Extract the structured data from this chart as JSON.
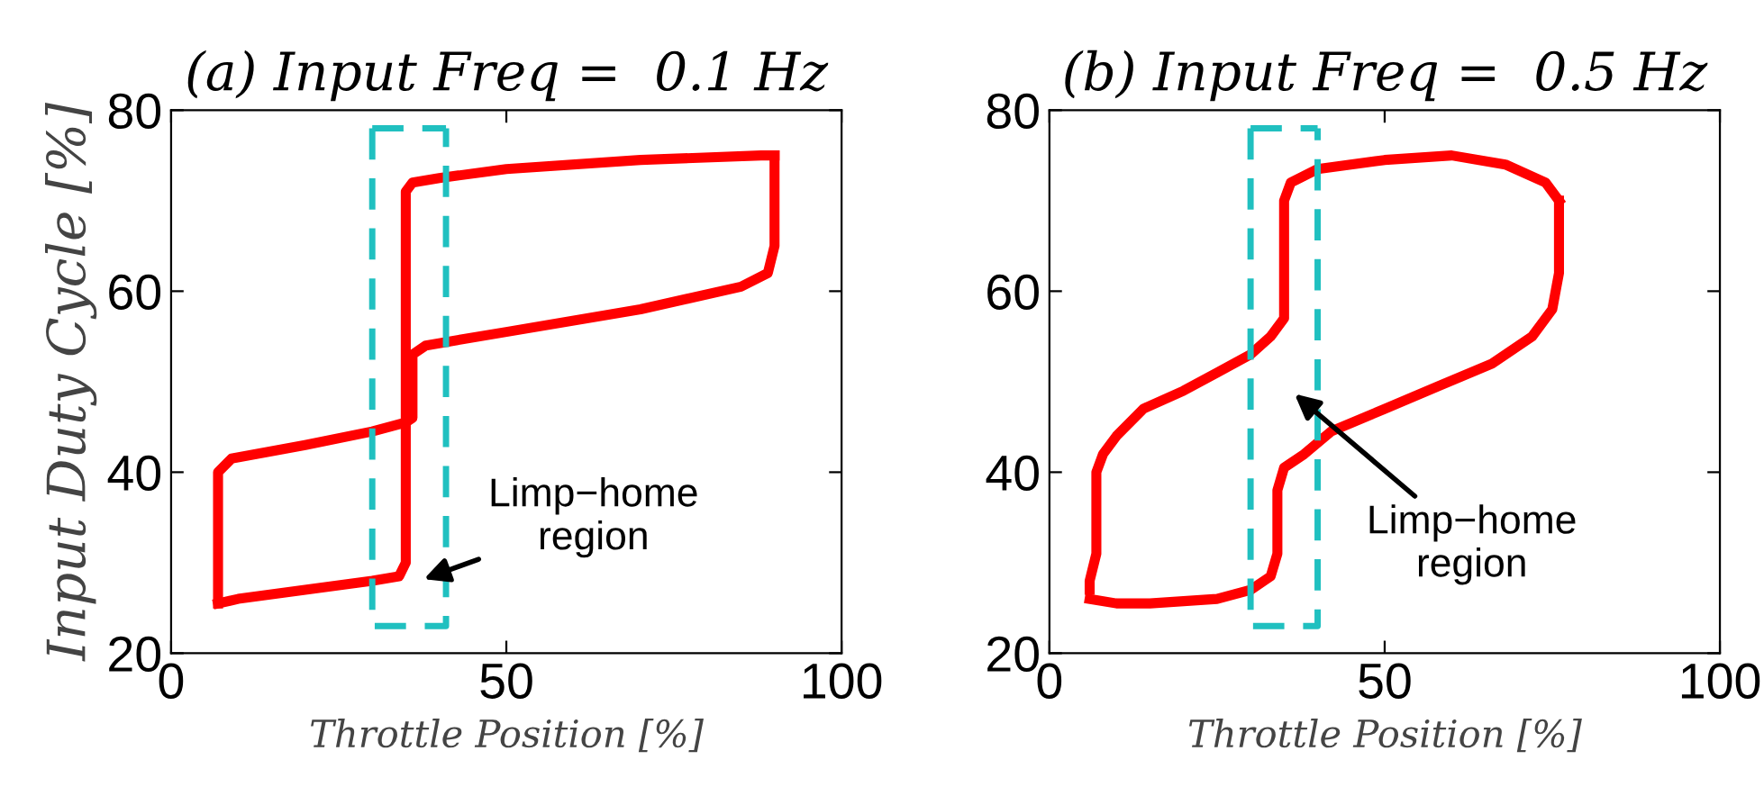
{
  "chart_data": [
    {
      "type": "line",
      "title": "(a) Input Freq =  0.1 Hz",
      "xlabel": "Throttle Position [%]",
      "ylabel": "Input Duty Cycle [%]",
      "xlim": [
        0,
        100
      ],
      "ylim": [
        20,
        80
      ],
      "xticks": [
        0,
        50,
        100
      ],
      "yticks": [
        20,
        40,
        60,
        80
      ],
      "grid": false,
      "legend": false,
      "marker": "none",
      "series": [
        {
          "color": "#ff0000",
          "line_style": "solid",
          "x": [
            7,
            7,
            9,
            20,
            30,
            35,
            36,
            36,
            38,
            50,
            70,
            85,
            89,
            90,
            90
          ],
          "values": [
            25.5,
            40,
            41.5,
            43,
            44.5,
            45.5,
            46,
            53,
            54,
            55.5,
            58,
            60.5,
            62,
            65,
            75
          ]
        },
        {
          "color": "#ff0000",
          "line_style": "solid",
          "x": [
            7,
            10,
            20,
            30,
            34,
            35,
            35,
            36,
            40,
            50,
            70,
            88,
            90
          ],
          "values": [
            25.5,
            26,
            27,
            28,
            28.5,
            30,
            71,
            72,
            72.5,
            73.5,
            74.5,
            75,
            75
          ]
        },
        {
          "color": "#20c0c0",
          "line_style": "dashed",
          "x": [
            30,
            30,
            41,
            41
          ],
          "values": [
            78,
            23,
            23,
            78
          ]
        },
        {
          "color": "#20c0c0",
          "line_style": "dashed",
          "x": [
            30,
            41
          ],
          "values": [
            78,
            78
          ]
        }
      ],
      "annotations": [
        "Limp−home\nregion"
      ]
    },
    {
      "type": "line",
      "title": "(b) Input Freq =  0.5 Hz",
      "xlabel": "Throttle Position [%]",
      "xlim": [
        0,
        100
      ],
      "ylim": [
        20,
        80
      ],
      "xticks": [
        0,
        50,
        100
      ],
      "yticks": [
        20,
        40,
        60,
        80
      ],
      "grid": false,
      "legend": false,
      "marker": "none",
      "series": [
        {
          "color": "#ff0000",
          "line_style": "solid",
          "x": [
            6,
            6,
            7,
            7,
            7,
            8,
            10,
            14,
            20,
            25,
            30,
            33,
            35,
            35,
            35,
            35,
            36,
            40,
            50,
            60,
            68,
            74,
            76
          ],
          "values": [
            27,
            28,
            31,
            35,
            40,
            42,
            44,
            47,
            49,
            51,
            53,
            55,
            57,
            60,
            65,
            70,
            72,
            73.5,
            74.5,
            75,
            74,
            72,
            70
          ]
        },
        {
          "color": "#ff0000",
          "line_style": "solid",
          "x": [
            6,
            10,
            15,
            25,
            30,
            33,
            34,
            34,
            35,
            38,
            42,
            50,
            58,
            66,
            72,
            75,
            76,
            76
          ],
          "values": [
            26,
            25.5,
            25.5,
            26,
            27,
            28.5,
            31,
            38,
            40.5,
            42,
            44.5,
            47,
            49.5,
            52,
            55,
            58,
            62,
            70
          ]
        },
        {
          "color": "#20c0c0",
          "line_style": "dashed",
          "x": [
            30,
            30,
            40,
            40
          ],
          "values": [
            78,
            23,
            23,
            78
          ]
        },
        {
          "color": "#20c0c0",
          "line_style": "dashed",
          "x": [
            30,
            40
          ],
          "values": [
            78,
            78
          ]
        }
      ],
      "annotations": [
        "Limp−home\nregion"
      ]
    }
  ]
}
